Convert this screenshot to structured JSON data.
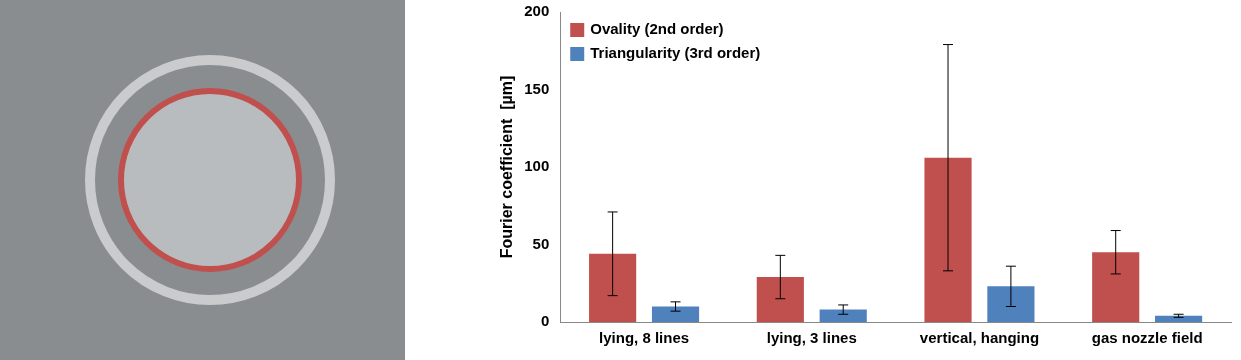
{
  "chart_data": {
    "type": "bar",
    "y_label": "Fourier coefficient  [µm]",
    "categories": [
      "lying, 8 lines",
      "lying, 3 lines",
      "vertical, hanging",
      "gas nozzle field"
    ],
    "series": [
      {
        "name": "Ovality (2nd order)",
        "color": "#c0504d",
        "values": [
          44,
          29,
          106,
          45
        ],
        "errors": [
          27,
          14,
          73,
          14
        ]
      },
      {
        "name": "Triangularity (3rd order)",
        "color": "#4f81bd",
        "values": [
          10,
          8,
          23,
          4
        ],
        "errors": [
          3,
          3,
          13,
          1
        ]
      }
    ],
    "ylim": [
      0,
      200
    ],
    "yticks": [
      0,
      50,
      100,
      150,
      200
    ],
    "grid": false,
    "legend": "top-left"
  }
}
